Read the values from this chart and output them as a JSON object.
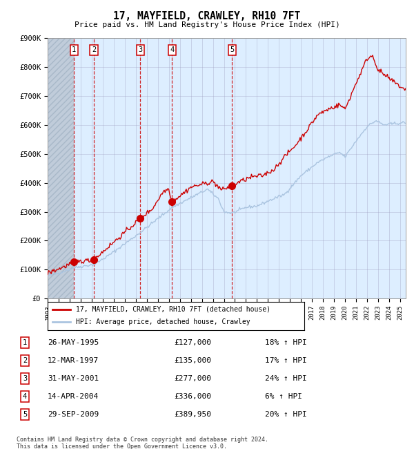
{
  "title": "17, MAYFIELD, CRAWLEY, RH10 7FT",
  "subtitle": "Price paid vs. HM Land Registry's House Price Index (HPI)",
  "ylim": [
    0,
    900000
  ],
  "yticks": [
    0,
    100000,
    200000,
    300000,
    400000,
    500000,
    600000,
    700000,
    800000,
    900000
  ],
  "ytick_labels": [
    "£0",
    "£100K",
    "£200K",
    "£300K",
    "£400K",
    "£500K",
    "£600K",
    "£700K",
    "£800K",
    "£900K"
  ],
  "xlim_start": 1993.0,
  "xlim_end": 2025.5,
  "hpi_color": "#aac4e0",
  "price_color": "#cc0000",
  "vline_color": "#cc0000",
  "bg_color": "#ddeeff",
  "grid_color": "#9999bb",
  "sales": [
    {
      "num": 1,
      "date_dec": 1995.4,
      "price": 127000,
      "date_str": "26-MAY-1995",
      "pct": "18%"
    },
    {
      "num": 2,
      "date_dec": 1997.2,
      "price": 135000,
      "date_str": "12-MAR-1997",
      "pct": "17%"
    },
    {
      "num": 3,
      "date_dec": 2001.42,
      "price": 277000,
      "date_str": "31-MAY-2001",
      "pct": "24%"
    },
    {
      "num": 4,
      "date_dec": 2004.29,
      "price": 336000,
      "date_str": "14-APR-2004",
      "pct": "6%"
    },
    {
      "num": 5,
      "date_dec": 2009.75,
      "price": 389950,
      "date_str": "29-SEP-2009",
      "pct": "20%"
    }
  ],
  "footer": "Contains HM Land Registry data © Crown copyright and database right 2024.\nThis data is licensed under the Open Government Licence v3.0.",
  "legend1": "17, MAYFIELD, CRAWLEY, RH10 7FT (detached house)",
  "legend2": "HPI: Average price, detached house, Crawley"
}
